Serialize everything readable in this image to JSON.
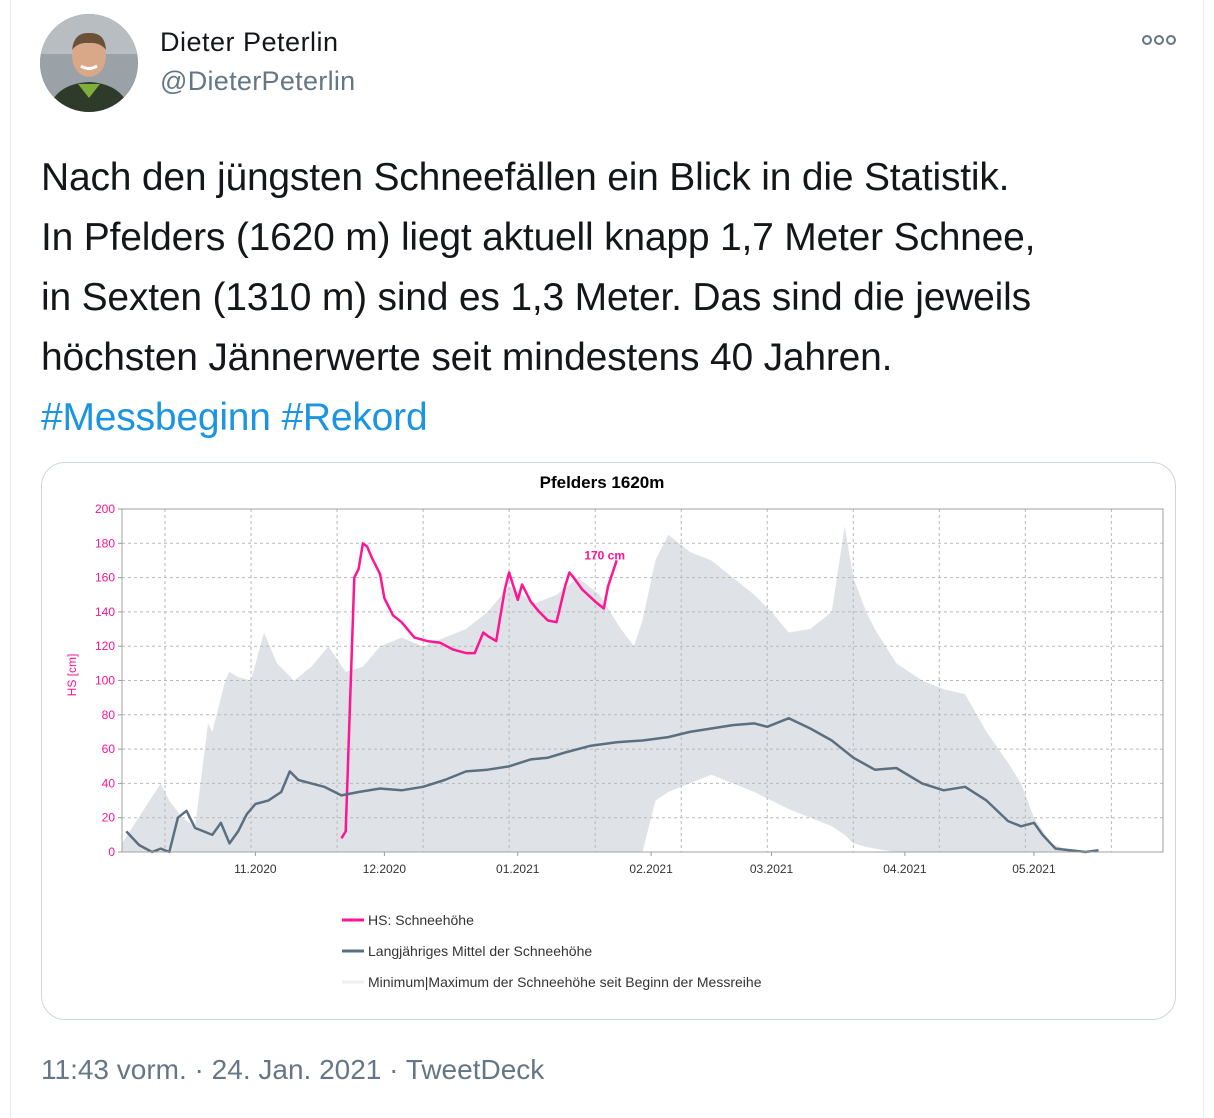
{
  "author": {
    "name": "Dieter Peterlin",
    "handle": "@DieterPeterlin"
  },
  "more_icon": "more-options-icon",
  "tweet": {
    "lines": [
      "Nach den jüngsten Schneefällen ein Blick in die Statistik.",
      "In Pfelders (1620 m) liegt aktuell knapp 1,7 Meter Schnee,",
      "in Sexten (1310 m) sind es 1,3 Meter. Das sind die jeweils",
      "höchsten Jännerwerte seit mindestens 40 Jahren."
    ],
    "hashtags": [
      "#Messbeginn",
      "#Rekord"
    ]
  },
  "footer": {
    "time": "11:43 vorm.",
    "sep1": " · ",
    "date": "24. Jan. 2021",
    "sep2": " · ",
    "source": "TweetDeck"
  },
  "colors": {
    "hashtag": "#1b95e0",
    "hs_series": "#ff1493",
    "mean_series": "#5b6f80",
    "range_band": "#dfe3e7"
  },
  "chart_data": {
    "type": "line",
    "title": "Pfelders  1620m",
    "ylabel": "HS [cm]",
    "xlabel": "",
    "ylim": [
      0,
      200
    ],
    "yticks": [
      0,
      20,
      40,
      60,
      80,
      100,
      120,
      140,
      160,
      180,
      200
    ],
    "x_unit": "date",
    "xlim": [
      "2020-10-01",
      "2021-05-31"
    ],
    "xticks": [
      {
        "date": "2020-11-01",
        "label": "11.2020"
      },
      {
        "date": "2020-12-01",
        "label": "12.2020"
      },
      {
        "date": "2021-01-01",
        "label": "01.2021"
      },
      {
        "date": "2021-02-01",
        "label": "02.2021"
      },
      {
        "date": "2021-03-01",
        "label": "03.2021"
      },
      {
        "date": "2021-04-01",
        "label": "04.2021"
      },
      {
        "date": "2021-05-01",
        "label": "05.2021"
      }
    ],
    "grid": true,
    "legend_position": "bottom",
    "annotation": {
      "text": "170 cm",
      "date": "2021-01-24",
      "y": 170
    },
    "series": [
      {
        "name": "HS: Schneehöhe",
        "kind": "line",
        "color": "#ff1493",
        "x": [
          "2020-11-21",
          "2020-11-22",
          "2020-11-24",
          "2020-11-25",
          "2020-11-26",
          "2020-11-27",
          "2020-11-28",
          "2020-11-30",
          "2020-12-01",
          "2020-12-03",
          "2020-12-05",
          "2020-12-08",
          "2020-12-11",
          "2020-12-14",
          "2020-12-17",
          "2020-12-20",
          "2020-12-22",
          "2020-12-24",
          "2020-12-25",
          "2020-12-27",
          "2020-12-29",
          "2020-12-30",
          "2021-01-01",
          "2021-01-02",
          "2021-01-04",
          "2021-01-06",
          "2021-01-08",
          "2021-01-10",
          "2021-01-12",
          "2021-01-13",
          "2021-01-14",
          "2021-01-16",
          "2021-01-19",
          "2021-01-21",
          "2021-01-22",
          "2021-01-24"
        ],
        "y": [
          8,
          12,
          160,
          165,
          180,
          178,
          172,
          162,
          148,
          138,
          134,
          125,
          123,
          122,
          118,
          116,
          116,
          128,
          126,
          123,
          153,
          163,
          147,
          156,
          146,
          140,
          135,
          134,
          155,
          163,
          160,
          153,
          146,
          142,
          155,
          170
        ]
      },
      {
        "name": "Langjähriges Mittel der Schneehöhe",
        "kind": "line",
        "color": "#5b6f80",
        "x": [
          "2020-10-02",
          "2020-10-05",
          "2020-10-08",
          "2020-10-10",
          "2020-10-12",
          "2020-10-14",
          "2020-10-16",
          "2020-10-18",
          "2020-10-20",
          "2020-10-22",
          "2020-10-24",
          "2020-10-26",
          "2020-10-28",
          "2020-10-30",
          "2020-11-01",
          "2020-11-04",
          "2020-11-07",
          "2020-11-09",
          "2020-11-11",
          "2020-11-14",
          "2020-11-17",
          "2020-11-21",
          "2020-11-25",
          "2020-11-30",
          "2020-12-05",
          "2020-12-10",
          "2020-12-15",
          "2020-12-20",
          "2020-12-25",
          "2020-12-30",
          "2021-01-04",
          "2021-01-08",
          "2021-01-12",
          "2021-01-18",
          "2021-01-24",
          "2021-01-30",
          "2021-02-05",
          "2021-02-10",
          "2021-02-15",
          "2021-02-20",
          "2021-02-25",
          "2021-02-28",
          "2021-03-05",
          "2021-03-10",
          "2021-03-15",
          "2021-03-20",
          "2021-03-25",
          "2021-03-30",
          "2021-04-05",
          "2021-04-10",
          "2021-04-15",
          "2021-04-20",
          "2021-04-25",
          "2021-04-28",
          "2021-05-01",
          "2021-05-03",
          "2021-05-06",
          "2021-05-13",
          "2021-05-16"
        ],
        "y": [
          12,
          4,
          0,
          2,
          0,
          20,
          24,
          14,
          12,
          10,
          17,
          5,
          12,
          22,
          28,
          30,
          35,
          47,
          42,
          40,
          38,
          33,
          35,
          37,
          36,
          38,
          42,
          47,
          48,
          50,
          54,
          55,
          58,
          62,
          64,
          65,
          67,
          70,
          72,
          74,
          75,
          73,
          78,
          72,
          65,
          55,
          48,
          49,
          40,
          36,
          38,
          30,
          18,
          15,
          17,
          10,
          2,
          0,
          1
        ]
      },
      {
        "name": "Minimum|Maximum der Schneehöhe seit Beginn der Messreihe",
        "kind": "band",
        "color": "#dfe3e7",
        "x": [
          "2020-10-01",
          "2020-10-10",
          "2020-10-12",
          "2020-10-15",
          "2020-10-18",
          "2020-10-21",
          "2020-10-22",
          "2020-10-23",
          "2020-10-25",
          "2020-10-26",
          "2020-10-28",
          "2020-10-31",
          "2020-11-03",
          "2020-11-06",
          "2020-11-08",
          "2020-11-10",
          "2020-11-14",
          "2020-11-18",
          "2020-11-22",
          "2020-11-26",
          "2020-11-30",
          "2020-12-05",
          "2020-12-10",
          "2020-12-15",
          "2020-12-20",
          "2020-12-25",
          "2020-12-30",
          "2021-01-05",
          "2021-01-10",
          "2021-01-15",
          "2021-01-20",
          "2021-01-25",
          "2021-01-28",
          "2021-01-30",
          "2021-02-02",
          "2021-02-05",
          "2021-02-10",
          "2021-02-15",
          "2021-02-20",
          "2021-02-25",
          "2021-03-01",
          "2021-03-05",
          "2021-03-10",
          "2021-03-15",
          "2021-03-18",
          "2021-03-20",
          "2021-03-23",
          "2021-03-25",
          "2021-03-30",
          "2021-04-05",
          "2021-04-10",
          "2021-04-15",
          "2021-04-20",
          "2021-04-25",
          "2021-04-28",
          "2021-05-01",
          "2021-05-05",
          "2021-05-10"
        ],
        "upper": [
          5,
          40,
          30,
          20,
          15,
          75,
          70,
          80,
          100,
          105,
          102,
          100,
          128,
          110,
          105,
          100,
          108,
          120,
          105,
          108,
          120,
          125,
          120,
          125,
          130,
          140,
          155,
          145,
          150,
          160,
          150,
          130,
          120,
          135,
          170,
          185,
          175,
          170,
          160,
          150,
          140,
          128,
          130,
          140,
          190,
          160,
          140,
          130,
          110,
          100,
          95,
          92,
          70,
          52,
          40,
          20,
          5,
          0
        ],
        "lower": [
          0,
          0,
          0,
          0,
          0,
          0,
          0,
          0,
          0,
          0,
          0,
          0,
          0,
          0,
          0,
          0,
          0,
          0,
          0,
          0,
          0,
          0,
          0,
          0,
          0,
          0,
          0,
          0,
          0,
          0,
          0,
          0,
          0,
          0,
          30,
          35,
          40,
          45,
          40,
          35,
          30,
          25,
          20,
          15,
          10,
          5,
          3,
          2,
          0,
          0,
          0,
          0,
          0,
          0,
          0,
          0,
          0,
          0
        ]
      }
    ]
  }
}
